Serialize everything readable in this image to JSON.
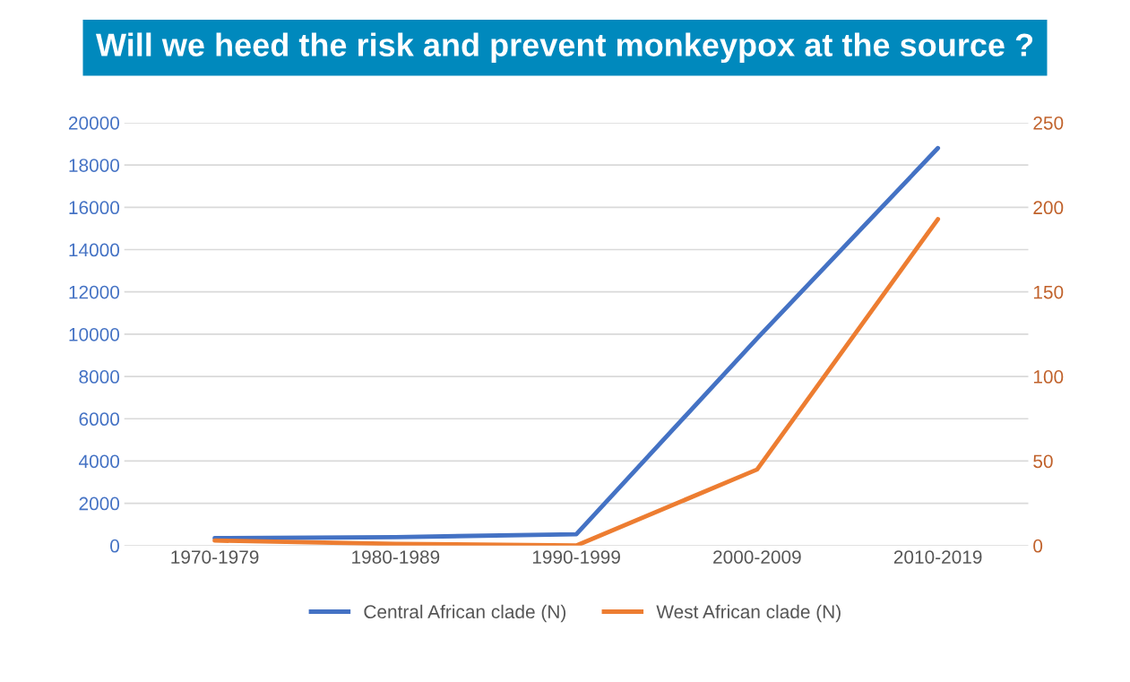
{
  "chart_data": {
    "type": "line",
    "categories": [
      "1970-1979",
      "1980-1989",
      "1990-1999",
      "2000-2009",
      "2010-2019"
    ],
    "series": [
      {
        "name": "Central African clade (N)",
        "color": "#4472c4",
        "values": [
          350,
          400,
          540,
          9800,
          18800
        ]
      },
      {
        "name": "West African clade (N)",
        "color": "#ed7d31",
        "axis": "y2",
        "values": [
          3,
          1,
          0,
          45,
          193
        ]
      }
    ],
    "ylim": [
      0,
      20000
    ],
    "yticks": [
      0,
      2000,
      4000,
      6000,
      8000,
      10000,
      12000,
      14000,
      16000,
      18000,
      20000
    ],
    "y2lim": [
      0,
      250
    ],
    "y2ticks": [
      0,
      50,
      100,
      150,
      200,
      250
    ],
    "grid": "y",
    "legend": "bottom",
    "marker": "none",
    "line_style": "solid",
    "annotations": [
      "Will we heed the risk and prevent monkeypox at the source ?"
    ]
  }
}
